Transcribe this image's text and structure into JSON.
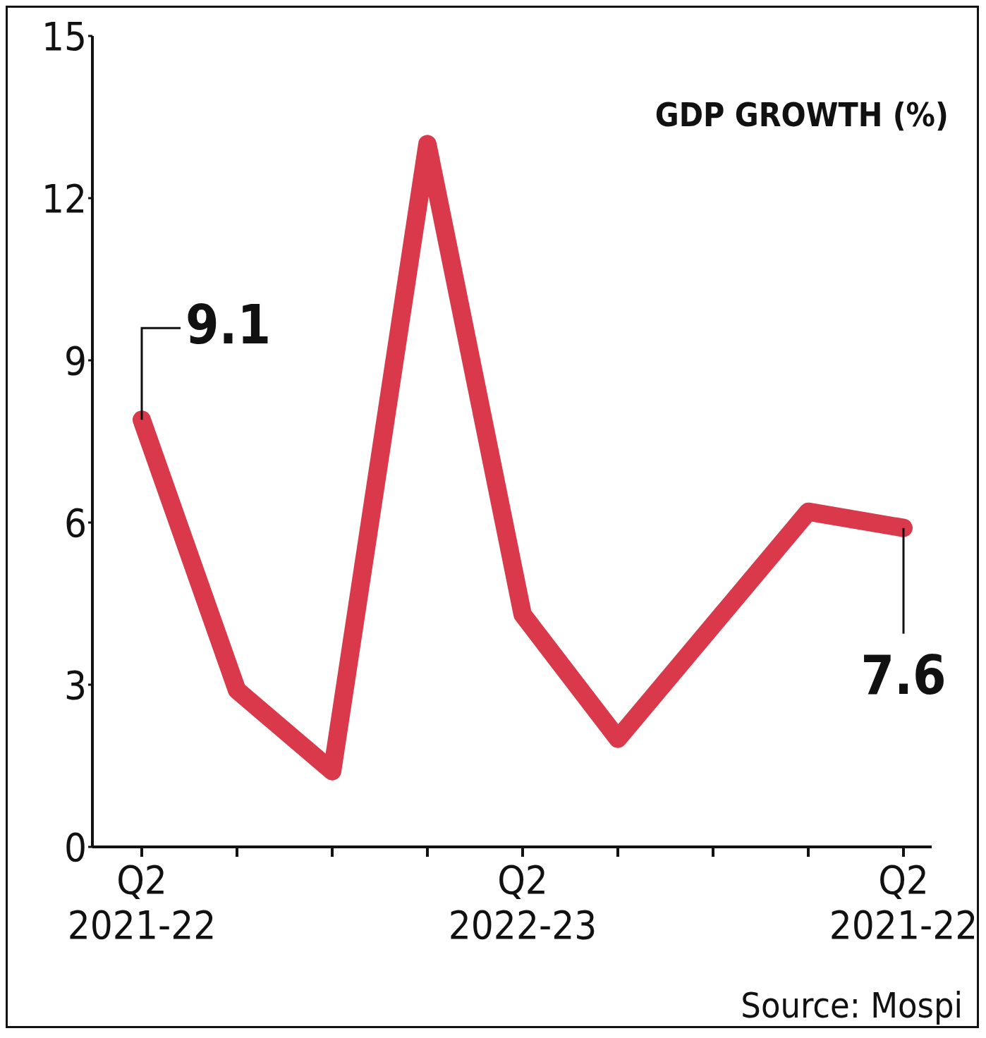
{
  "chart_data": {
    "type": "line",
    "title": "GDP GROWTH (%)",
    "categories": [
      "Q2\n2021-22",
      null,
      null,
      null,
      "Q2\n2022-23",
      null,
      null,
      null,
      "Q2\n2021-22"
    ],
    "series": [
      {
        "color": "#d9394a",
        "values": [
          7.9,
          2.9,
          1.4,
          13.0,
          4.3,
          2.0,
          4.1,
          6.2,
          5.9
        ]
      }
    ],
    "ylim": [
      0,
      15
    ],
    "yticks": [
      0,
      3,
      6,
      9,
      12,
      15
    ],
    "marker": "none",
    "line_style": "solid",
    "annotations": [
      "9.1",
      {
        "text": "7.6",
        "y": 5.9
      },
      "Source: Mospi"
    ]
  }
}
